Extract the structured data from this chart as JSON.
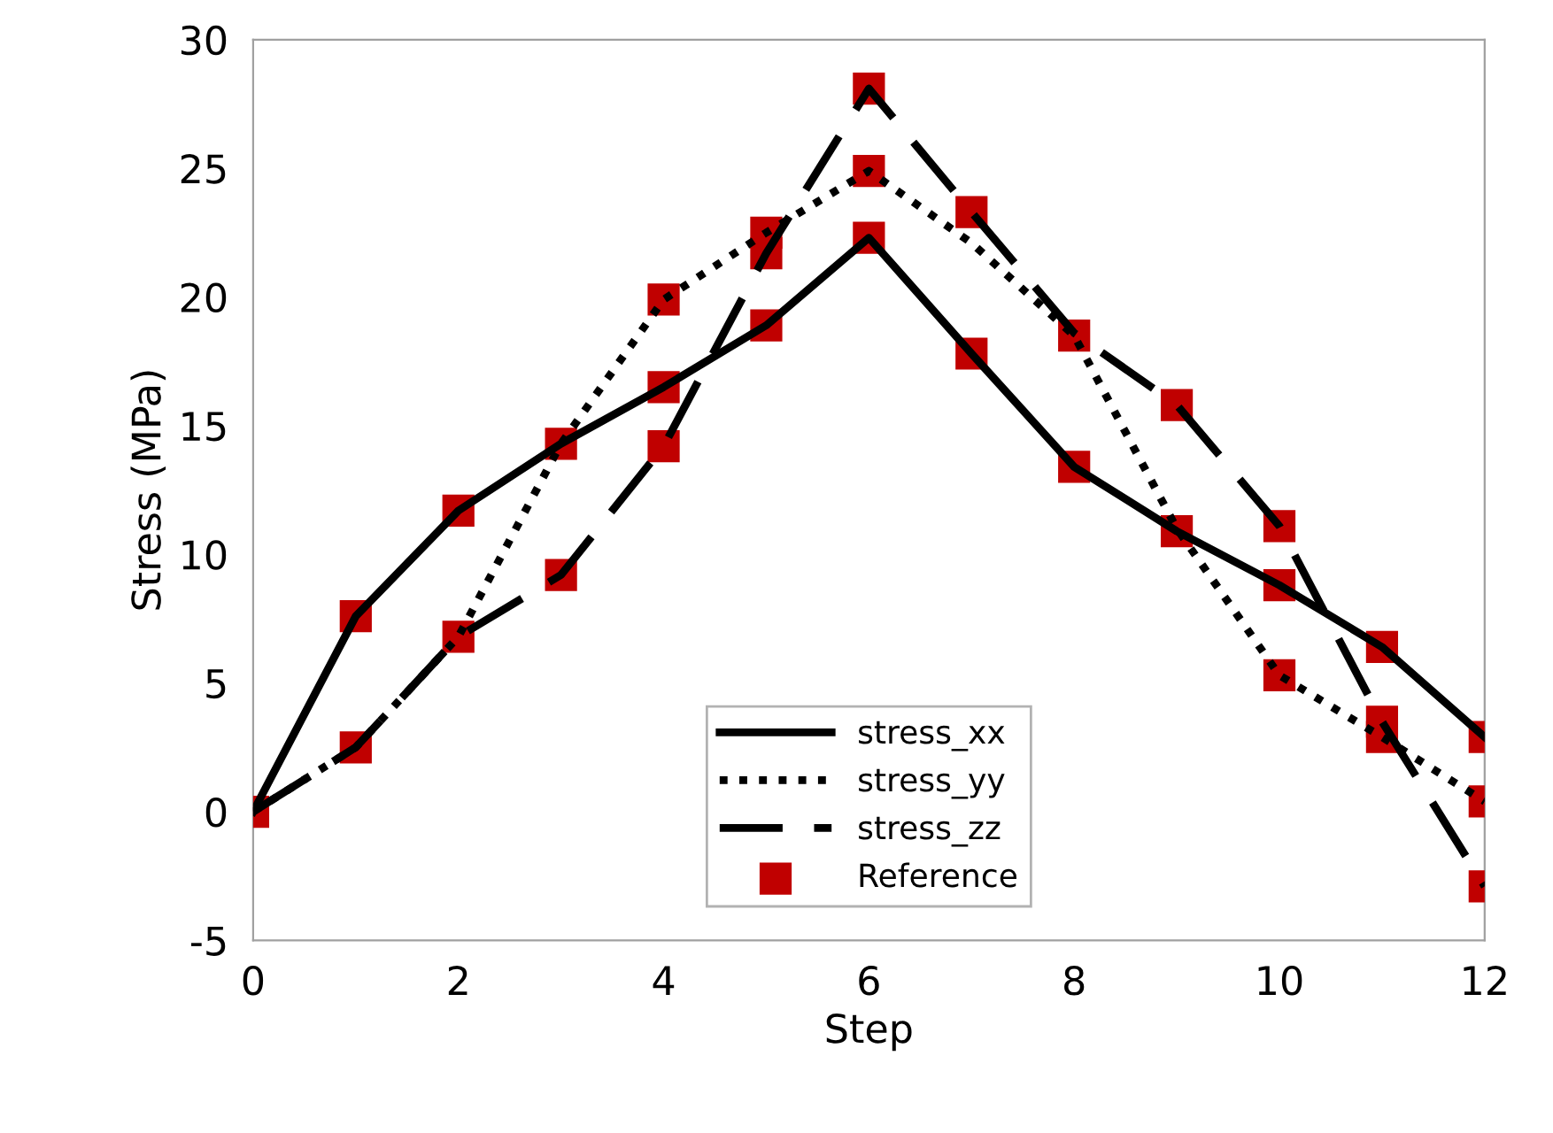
{
  "chart_data": {
    "type": "line",
    "xlabel": "Step",
    "ylabel": "Stress (MPa)",
    "x": [
      0,
      1,
      2,
      3,
      4,
      5,
      6,
      7,
      8,
      9,
      10,
      11,
      12
    ],
    "series": [
      {
        "name": "stress_xx",
        "color": "#000000",
        "line_style": "solid",
        "marker": "none",
        "values": [
          0,
          7.6,
          11.7,
          14.3,
          16.5,
          18.9,
          22.3,
          17.8,
          13.4,
          10.9,
          8.8,
          6.4,
          2.9
        ]
      },
      {
        "name": "stress_yy",
        "color": "#000000",
        "line_style": "dotted",
        "marker": "none",
        "values": [
          0,
          2.5,
          6.8,
          14.3,
          19.9,
          22.5,
          24.9,
          22.1,
          18.5,
          11.0,
          5.3,
          2.9,
          0.4
        ]
      },
      {
        "name": "stress_zz",
        "color": "#000000",
        "line_style": "dashed",
        "marker": "none",
        "values": [
          0,
          2.5,
          6.8,
          9.2,
          14.2,
          21.7,
          28.1,
          23.3,
          18.6,
          15.8,
          11.1,
          3.5,
          -2.9
        ]
      },
      {
        "name": "Reference",
        "type": "scatter",
        "color": "#c00000",
        "marker": "square",
        "x": [
          0,
          1,
          1,
          2,
          2,
          3,
          3,
          4,
          4,
          4,
          5,
          5,
          5,
          6,
          6,
          6,
          7,
          7,
          8,
          8,
          9,
          9,
          10,
          10,
          10,
          11,
          11,
          11,
          12,
          12,
          12
        ],
        "values": [
          0,
          7.6,
          2.5,
          11.7,
          6.8,
          14.3,
          9.2,
          16.5,
          19.9,
          14.2,
          18.9,
          22.5,
          21.7,
          22.3,
          24.9,
          28.1,
          17.8,
          23.3,
          13.4,
          18.5,
          10.9,
          15.8,
          8.8,
          5.3,
          11.1,
          6.4,
          2.9,
          3.5,
          2.9,
          0.4,
          -2.9
        ]
      }
    ],
    "xlim": [
      0,
      12
    ],
    "xticks": [
      0,
      2,
      4,
      6,
      8,
      10,
      12
    ],
    "ylim": [
      -5,
      30
    ],
    "yticks": [
      -5,
      0,
      5,
      10,
      15,
      20,
      25,
      30
    ],
    "grid": false,
    "legend": "bottom"
  }
}
